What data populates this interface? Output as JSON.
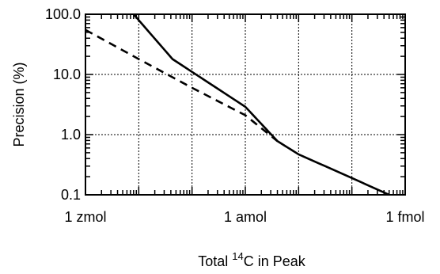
{
  "chart_data": {
    "type": "line",
    "title": "",
    "xlabel": {
      "prefix": "Total ",
      "superscript": "14",
      "suffix": "C in Peak"
    },
    "ylabel": "Precision (%)",
    "x_scale": "log",
    "y_scale": "log",
    "x_unit": "mol",
    "xlim": [
      1e-21,
      1e-15
    ],
    "ylim": [
      0.1,
      100
    ],
    "x_ticks": [
      {
        "value": 1e-21,
        "label": "1 zmol"
      },
      {
        "value": 1e-18,
        "label": "1 amol"
      },
      {
        "value": 1e-15,
        "label": "1 fmol"
      }
    ],
    "y_ticks": [
      {
        "value": 0.1,
        "label": "0.1"
      },
      {
        "value": 1,
        "label": "1.0"
      },
      {
        "value": 10,
        "label": "10.0"
      },
      {
        "value": 100,
        "label": "100.0"
      }
    ],
    "grid": true,
    "series": [
      {
        "style": "solid",
        "color": "#000000",
        "x": [
          8e-21,
          4.3e-20,
          1e-18,
          4e-18,
          1e-17,
          1e-16,
          5e-16
        ],
        "y": [
          100,
          18,
          2.9,
          0.78,
          0.47,
          0.19,
          0.1
        ]
      },
      {
        "style": "dashed",
        "color": "#000000",
        "x": [
          1e-21,
          1e-20,
          1e-19,
          1e-18,
          4e-18
        ],
        "y": [
          55,
          18,
          6,
          2.1,
          0.78
        ]
      }
    ]
  }
}
